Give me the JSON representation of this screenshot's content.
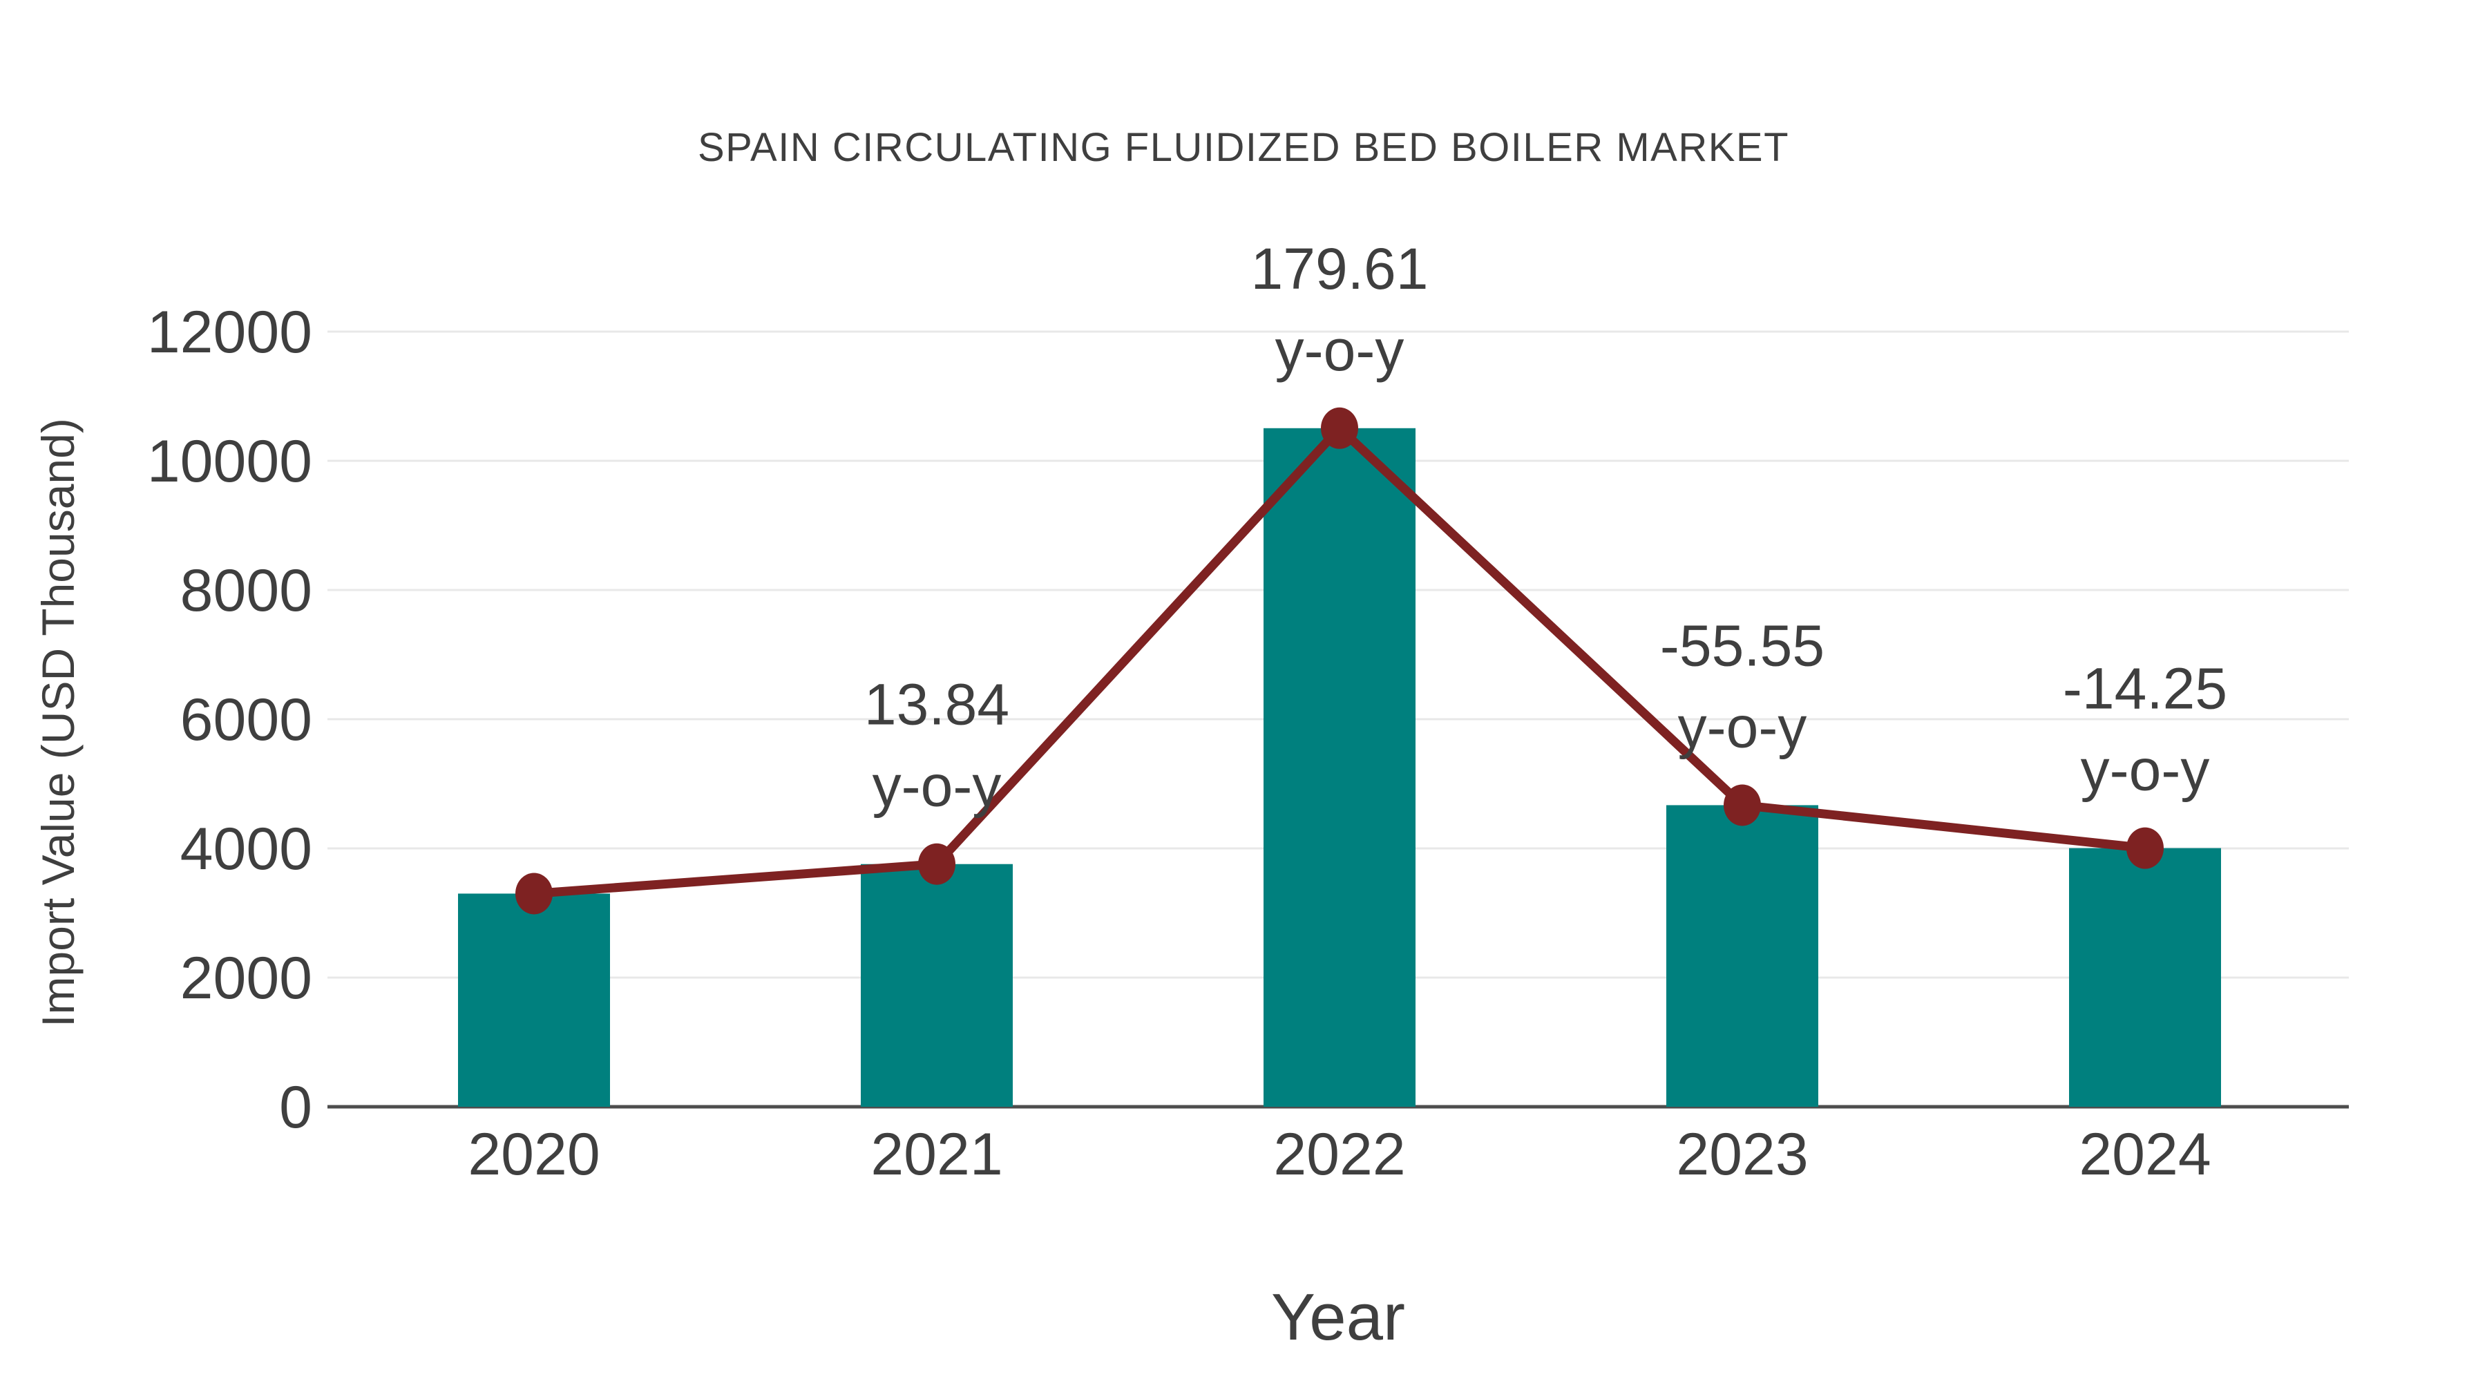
{
  "chart_data": {
    "type": "combo-bar-line",
    "title": "SPAIN CIRCULATING FLUIDIZED BED BOILER MARKET",
    "xlabel": "Year",
    "ylabel": "Import Value (USD Thousand)",
    "categories": [
      "2020",
      "2021",
      "2022",
      "2023",
      "2024"
    ],
    "series": [
      {
        "name": "Import Value (USD Thousand)",
        "type": "bar",
        "values": [
          3300,
          3757,
          10505,
          4669,
          4004
        ],
        "color": "#00807E"
      },
      {
        "name": "y-o-y trend",
        "type": "line",
        "values": [
          3300,
          3757,
          10505,
          4669,
          4004
        ],
        "color": "#7E2222"
      }
    ],
    "yoy_labels": [
      "",
      "13.84",
      "179.61",
      "-55.55",
      "-14.25"
    ],
    "yoy_suffix": "y-o-y",
    "ylim": [
      0,
      12000
    ],
    "yticks": [
      0,
      2000,
      4000,
      6000,
      8000,
      10000,
      12000
    ],
    "grid": "horizontal",
    "legend": "none",
    "colors": {
      "bar": "#00807E",
      "line": "#7E2222",
      "marker": "#7E2222",
      "text": "#3f3f3f",
      "gridline": "#e8e8e8",
      "axis_line": "#4d4d4d",
      "background": "#ffffff"
    }
  }
}
